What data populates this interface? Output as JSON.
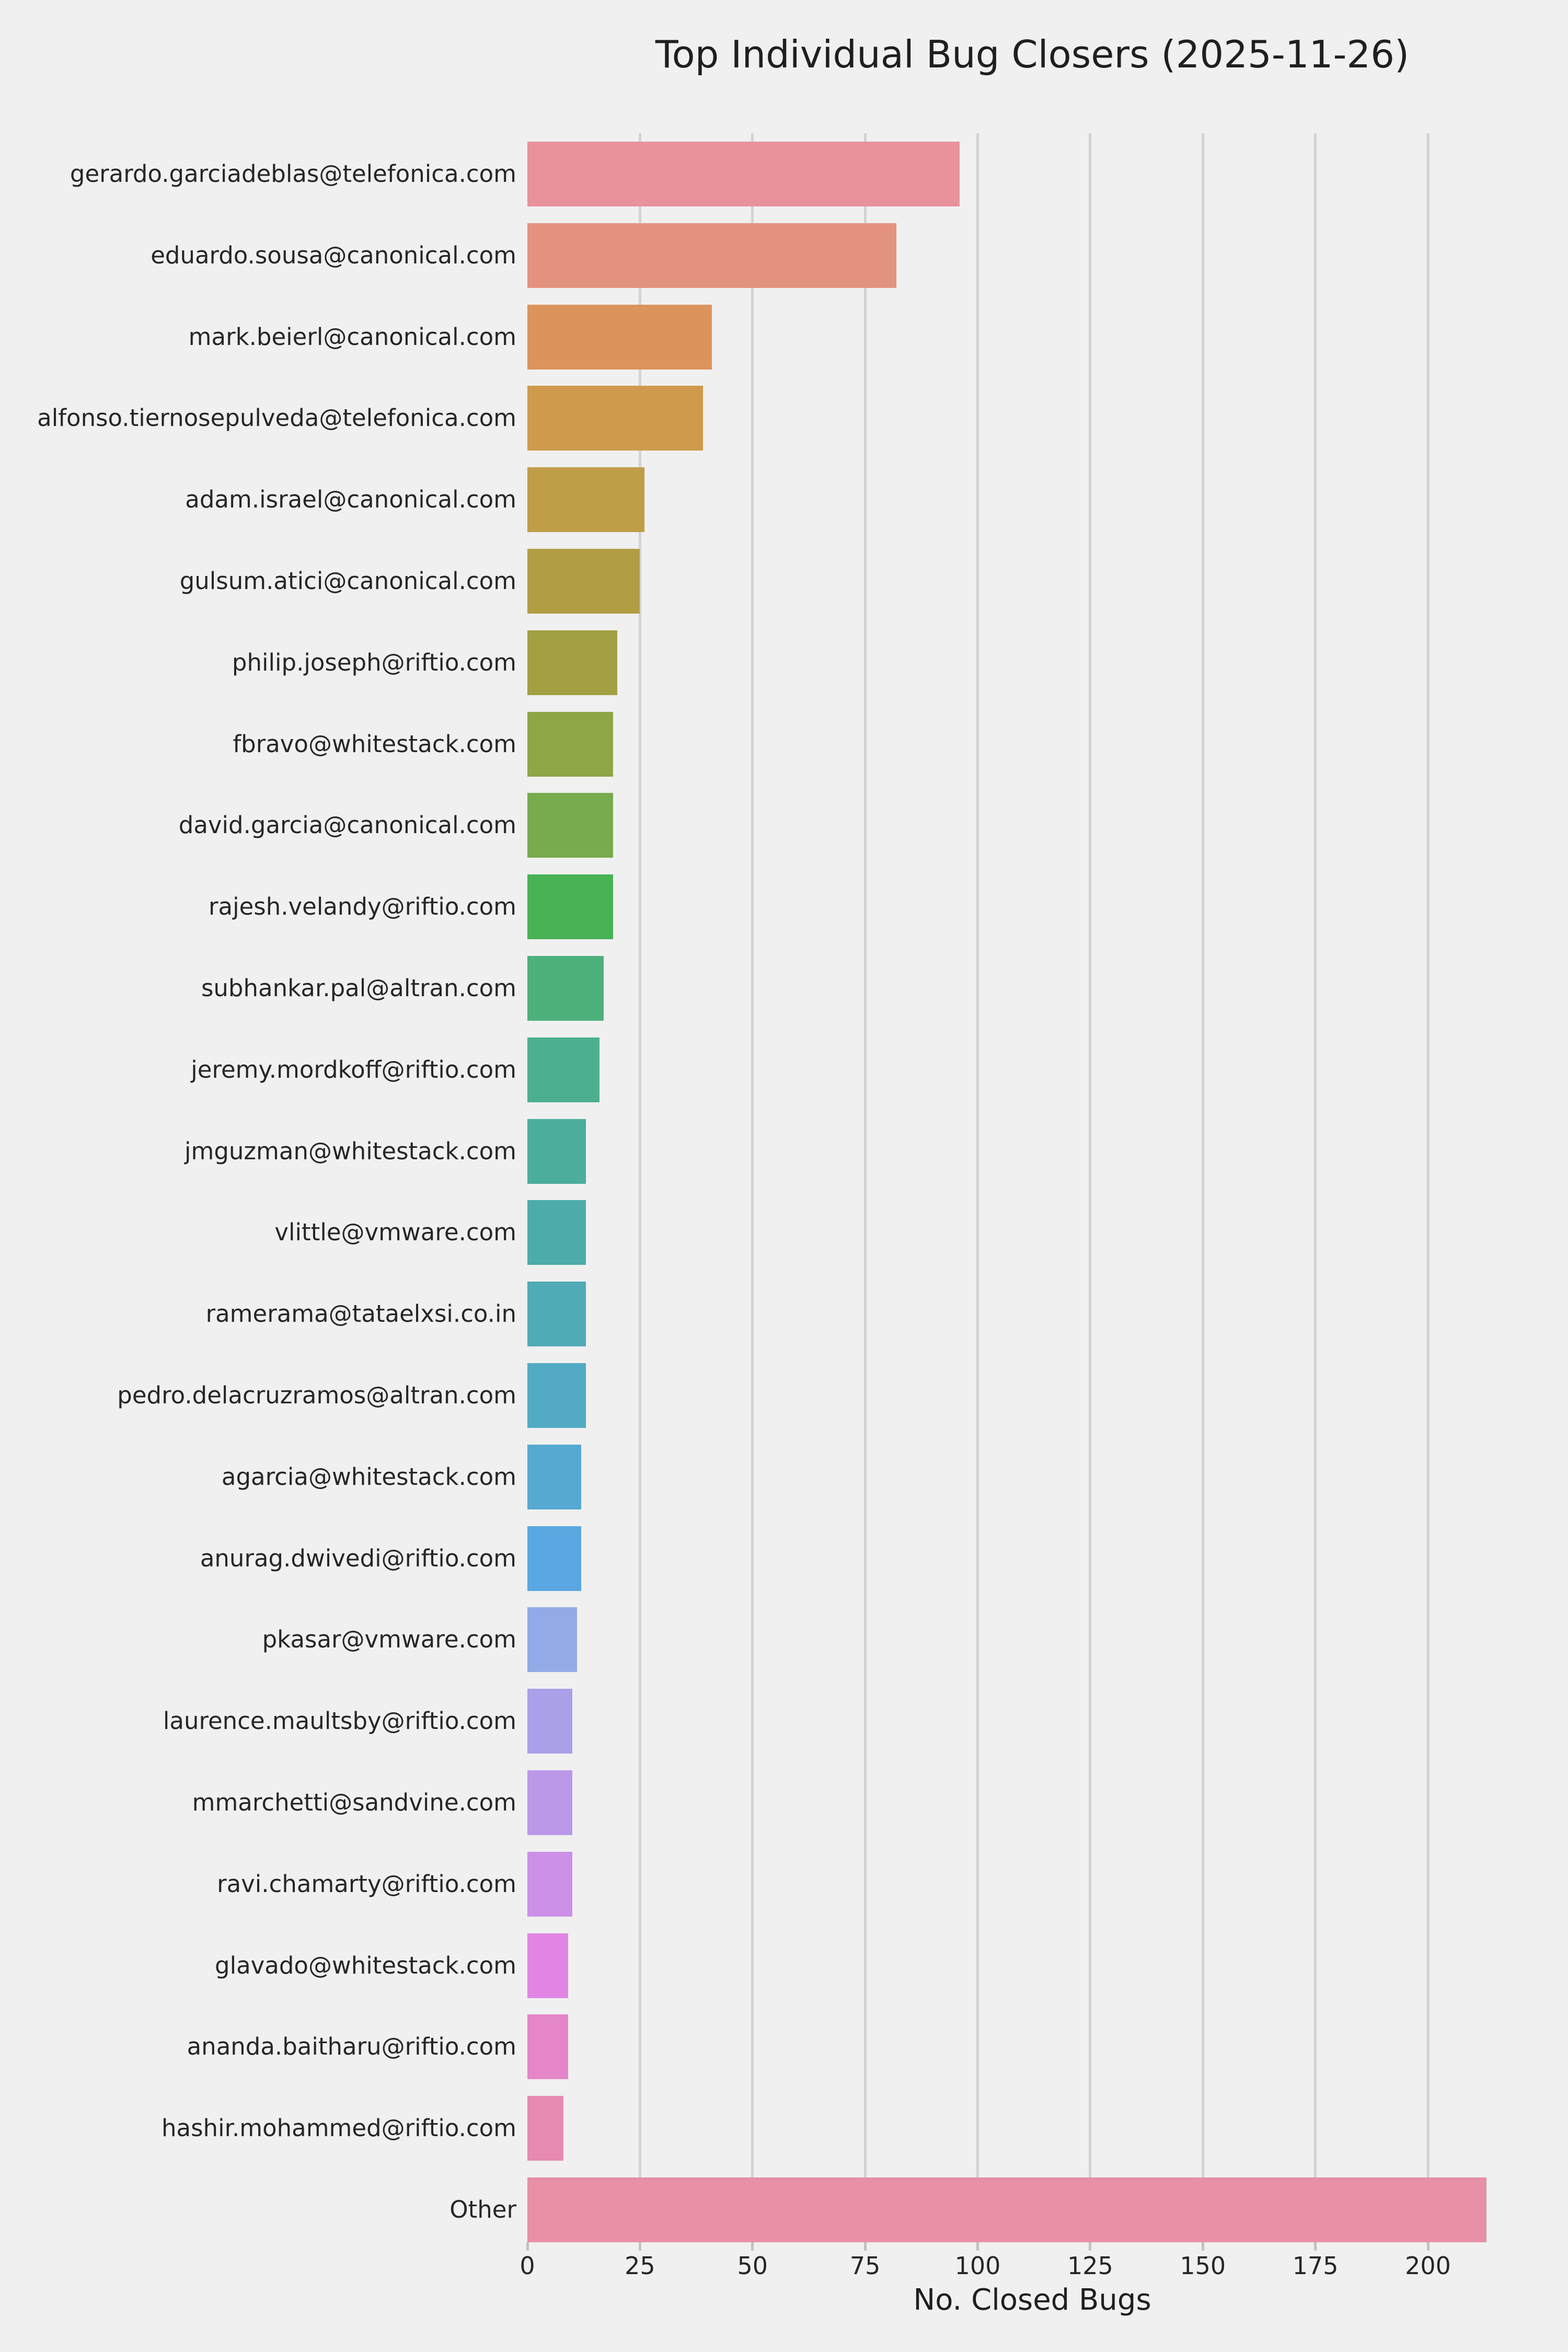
{
  "title": "Top Individual Bug Closers (2025-11-26)",
  "xlabel": "No. Closed Bugs",
  "background_color": "#f0f0f0",
  "grid_color": "#d3d3d3",
  "text_color": "#262626",
  "chart_data": {
    "type": "bar",
    "orientation": "horizontal",
    "title": "Top Individual Bug Closers (2025-11-26)",
    "xlabel": "No. Closed Bugs",
    "ylabel": "",
    "xlim": [
      0,
      224
    ],
    "xticks": [
      0,
      25,
      50,
      75,
      100,
      125,
      150,
      175,
      200
    ],
    "grid": true,
    "legend": false,
    "categories": [
      "gerardo.garciadeblas@telefonica.com",
      "eduardo.sousa@canonical.com",
      "mark.beierl@canonical.com",
      "alfonso.tiernosepulveda@telefonica.com",
      "adam.israel@canonical.com",
      "gulsum.atici@canonical.com",
      "philip.joseph@riftio.com",
      "fbravo@whitestack.com",
      "david.garcia@canonical.com",
      "rajesh.velandy@riftio.com",
      "subhankar.pal@altran.com",
      "jeremy.mordkoff@riftio.com",
      "jmguzman@whitestack.com",
      "vlittle@vmware.com",
      "ramerama@tataelxsi.co.in",
      "pedro.delacruzramos@altran.com",
      "agarcia@whitestack.com",
      "anurag.dwivedi@riftio.com",
      "pkasar@vmware.com",
      "laurence.maultsby@riftio.com",
      "mmarchetti@sandvine.com",
      "ravi.chamarty@riftio.com",
      "glavado@whitestack.com",
      "ananda.baitharu@riftio.com",
      "hashir.mohammed@riftio.com",
      "Other"
    ],
    "values": [
      96,
      82,
      41,
      39,
      26,
      25,
      20,
      19,
      19,
      19,
      17,
      16,
      13,
      13,
      13,
      13,
      12,
      12,
      11,
      10,
      10,
      10,
      9,
      9,
      8,
      213
    ],
    "colors": [
      "#e8929e",
      "#e39280",
      "#dc945c",
      "#cf9a4c",
      "#c09d47",
      "#b19e44",
      "#a2a042",
      "#8fa647",
      "#78ab4e",
      "#48b255",
      "#4eb07c",
      "#4caf90",
      "#4cad9d",
      "#4dacaa",
      "#4fabb6",
      "#52aac3",
      "#56a9d1",
      "#5aa7e1",
      "#92abe8",
      "#aaa0e9",
      "#bc98e9",
      "#cc90e8",
      "#e085e4",
      "#e486c8",
      "#e78ab2",
      "#e890a6"
    ]
  }
}
